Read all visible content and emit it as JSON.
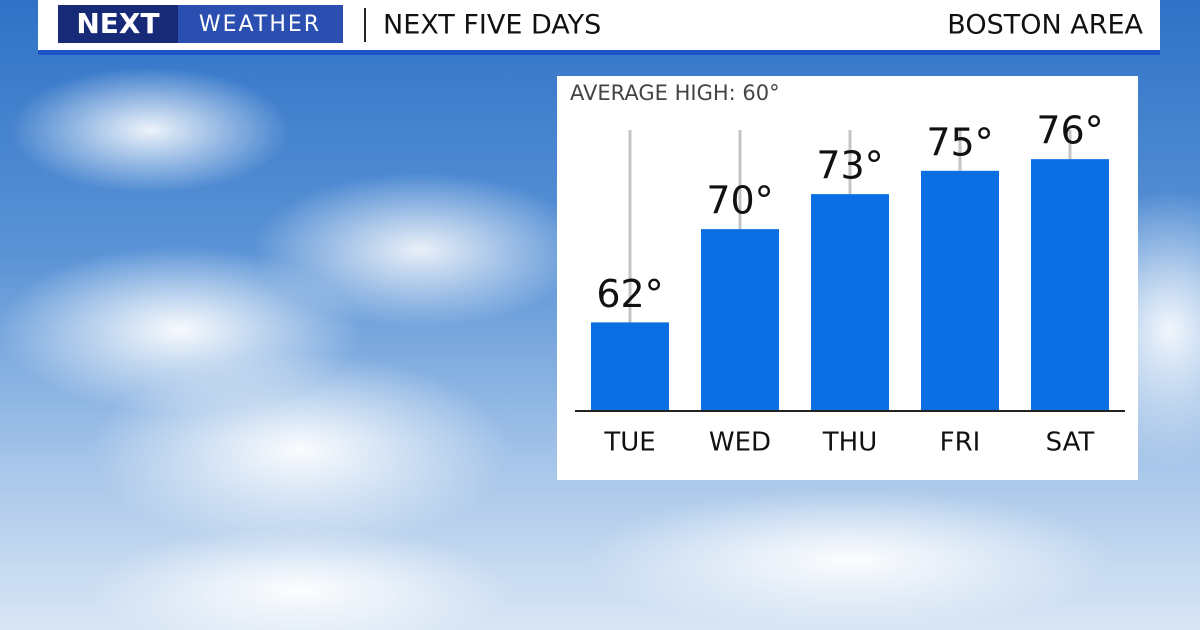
{
  "header": {
    "logo": "NEXT",
    "brand": "WEATHER",
    "location": "BOSTON AREA"
  },
  "chart_data": {
    "type": "bar",
    "title": "NEXT FIVE DAYS",
    "annotation": "AVERAGE HIGH:  60°",
    "categories": [
      "TUE",
      "WED",
      "THU",
      "FRI",
      "SAT"
    ],
    "values": [
      62,
      70,
      73,
      75,
      76
    ],
    "value_labels": [
      "62°",
      "70°",
      "73°",
      "75°",
      "76°"
    ],
    "color": "#0b6fe3",
    "ylim": [
      54.4,
      78.5
    ]
  }
}
